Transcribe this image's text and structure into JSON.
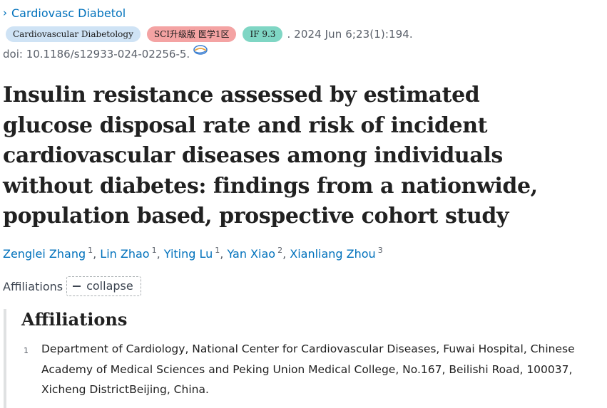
{
  "journal": {
    "name": "Cardiovasc Diabetol",
    "chevron_icon": "chevron-right-icon"
  },
  "badges": {
    "journal_full": "Cardiovascular Diabetology",
    "sci": "SCI升级版 医学1区",
    "impact": "IF 9.3"
  },
  "pub_date": ". 2024 Jun 6;23(1):194.",
  "doi": "doi: 10.1186/s12933-024-02256-5.",
  "doi_icon": "link-globe-icon",
  "title": "Insulin resistance assessed by estimated glucose disposal rate and risk of incident cardiovascular diseases among individuals without diabetes: findings from a nationwide, population based, prospective cohort study",
  "authors": [
    {
      "name": "Zenglei Zhang",
      "sup": "1",
      "sep": ", "
    },
    {
      "name": "Lin Zhao",
      "sup": "1",
      "sep": ", "
    },
    {
      "name": "Yiting Lu",
      "sup": "1",
      "sep": ", "
    },
    {
      "name": "Yan Xiao",
      "sup": "2",
      "sep": ", "
    },
    {
      "name": "Xianliang Zhou",
      "sup": "3",
      "sep": ""
    }
  ],
  "affiliations_toggle": {
    "label": "Affiliations",
    "button_label": "collapse"
  },
  "affiliations": {
    "heading": "Affiliations",
    "items": [
      {
        "num": "1",
        "text": "Department of Cardiology, National Center for Cardiovascular Diseases, Fuwai Hospital, Chinese Academy of Medical Sciences and Peking Union Medical College, No.167, Beilishi Road, 100037, Xicheng DistrictBeijing, China."
      }
    ]
  },
  "colors": {
    "link": "#0071bc",
    "badge_journal": "#cfe3f5",
    "badge_sci": "#f4a3a3",
    "badge_if": "#7fd6c4"
  }
}
